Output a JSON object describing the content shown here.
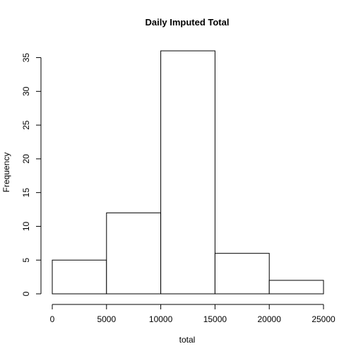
{
  "chart_data": {
    "type": "bar",
    "title": "Daily Imputed Total",
    "xlabel": "total",
    "ylabel": "Frequency",
    "bins": [
      {
        "start": 0,
        "end": 5000,
        "count": 5
      },
      {
        "start": 5000,
        "end": 10000,
        "count": 12
      },
      {
        "start": 10000,
        "end": 15000,
        "count": 36
      },
      {
        "start": 15000,
        "end": 20000,
        "count": 6
      },
      {
        "start": 20000,
        "end": 25000,
        "count": 2
      }
    ],
    "xlim": [
      0,
      25000
    ],
    "ylim": [
      0,
      36
    ],
    "x_ticks": [
      0,
      5000,
      10000,
      15000,
      20000,
      25000
    ],
    "y_ticks": [
      0,
      5,
      10,
      15,
      20,
      25,
      30,
      35
    ],
    "grid": false,
    "legend": "none",
    "colors": {
      "bar_fill": "#ffffff",
      "bar_stroke": "#000000"
    }
  }
}
